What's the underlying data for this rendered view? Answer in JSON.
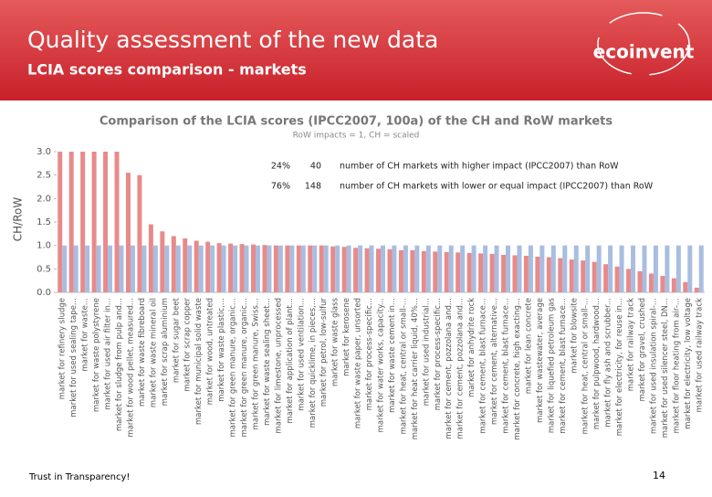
{
  "header": {
    "title": "Quality assessment of the new data",
    "subtitle": "LCIA scores comparison - markets",
    "logo": "ecoinvent"
  },
  "footer": {
    "tagline": "Trust in Transparency!",
    "page": "14"
  },
  "summary_table": {
    "rows": [
      [
        "24%",
        "40",
        "number of CH markets with higher impact (IPCC2007) than RoW"
      ],
      [
        "76%",
        "148",
        "number of CH markets with lower or equal impact (IPCC2007) than RoW"
      ]
    ]
  },
  "chart_data": {
    "type": "bar",
    "title": "Comparison of the LCIA scores (IPCC2007, 100a) of the CH and RoW markets",
    "subtitle": "RoW impacts = 1, CH = scaled",
    "y_label": "CH/RoW",
    "categories": [
      "market for refinery sludge",
      "market for used sealing tape...",
      "market for waste...",
      "market for waste polystyrene",
      "market for used air filter in...",
      "market for sludge from pulp and...",
      "market for wood pellet, measured...",
      "market for waste fibreboard",
      "market for waste mineral oil",
      "market for scrap aluminium",
      "market for sugar beet",
      "market for scrap copper",
      "market for municipal solid waste",
      "market for wood, untreated",
      "market for waste plastic,...",
      "market for green manure, organic...",
      "market for green manure, organic...",
      "market for green manure, Swiss...",
      "market for waste sealing sheet...",
      "market for limestone, unprocessed",
      "market for application of plant...",
      "market for used ventilation...",
      "market for quicklime, in pieces,...",
      "market for petrol, low-sulfur",
      "market for waste glass",
      "market for kerosene",
      "market for waste paper, unsorted",
      "market for process-specific...",
      "market for water works, capacity...",
      "market for waste cement in...",
      "market for heat, central or small-...",
      "market for heat carrier liquid, 40%...",
      "market for used industrial...",
      "market for process-specific...",
      "market for cement, pozzolana and...",
      "market for cement, pozzolana and...",
      "market for anhydrite rock",
      "market for cement, blast furnace...",
      "market for cement, alternative...",
      "market for cement, blast furnace...",
      "market for concrete, high exacting...",
      "market for lean concrete",
      "market for wastewater, average",
      "market for liquefied petroleum gas",
      "market for cement, blast furnace...",
      "market for blowsite",
      "market for heat, central or small-...",
      "market for pulpwood, hardwood...",
      "market for fly ash and scrubber...",
      "market for electricity, for reuse in...",
      "market for railway track",
      "market for gravel, crushed",
      "market for used insulation spiral-...",
      "market for used silencer steel, DN...",
      "market for floor heating from air-...",
      "market for electricity, low voltage",
      "market for used railway track"
    ],
    "series": [
      {
        "color": "#e88a8a",
        "values": [
          3.0,
          3.0,
          3.0,
          3.0,
          3.0,
          3.0,
          2.55,
          2.5,
          1.45,
          1.3,
          1.2,
          1.15,
          1.1,
          1.08,
          1.05,
          1.04,
          1.03,
          1.02,
          1.01,
          1.0,
          1.0,
          1.0,
          1.0,
          1.0,
          0.98,
          0.97,
          0.95,
          0.94,
          0.93,
          0.92,
          0.9,
          0.9,
          0.88,
          0.87,
          0.86,
          0.85,
          0.84,
          0.83,
          0.82,
          0.8,
          0.79,
          0.78,
          0.76,
          0.75,
          0.73,
          0.7,
          0.68,
          0.65,
          0.6,
          0.55,
          0.5,
          0.45,
          0.4,
          0.35,
          0.3,
          0.22,
          0.1
        ]
      },
      {
        "color": "#a9bde0",
        "values": [
          1,
          1,
          1,
          1,
          1,
          1,
          1,
          1,
          1,
          1,
          1,
          1,
          1,
          1,
          1,
          1,
          1,
          1,
          1,
          1,
          1,
          1,
          1,
          1,
          1,
          1,
          1,
          1,
          1,
          1,
          1,
          1,
          1,
          1,
          1,
          1,
          1,
          1,
          1,
          1,
          1,
          1,
          1,
          1,
          1,
          1,
          1,
          1,
          1,
          1,
          1,
          1,
          1,
          1,
          1,
          1,
          1
        ]
      }
    ],
    "ylim": [
      0,
      3
    ],
    "yticks": [
      {
        "value": 0,
        "label": "0.0"
      },
      0.5,
      {
        "value": 1,
        "label": "1.0"
      },
      1.5,
      {
        "value": 2,
        "label": "2.0"
      },
      2.5,
      {
        "value": 3,
        "label": "3.0"
      }
    ],
    "grid": false
  }
}
